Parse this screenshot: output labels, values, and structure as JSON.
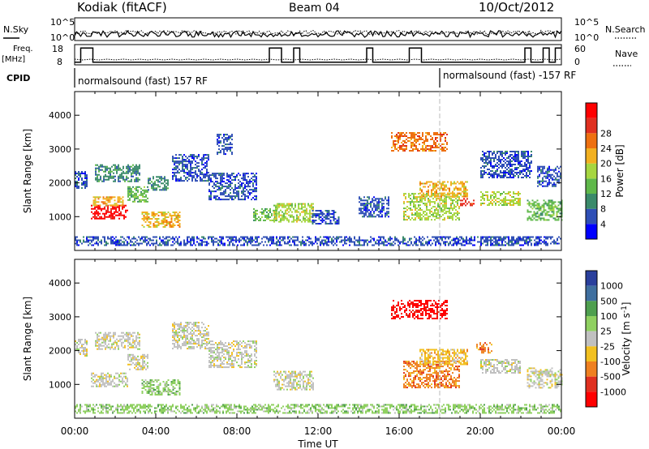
{
  "header": {
    "station": "Kodiak (fitACF)",
    "beam": "Beam 04",
    "date": "10/Oct/2012"
  },
  "summary_labels": {
    "nsky": "N.Sky",
    "nsearch": "N.Search",
    "freq": "Freq.",
    "freq_unit": "[MHz]",
    "nave": "Nave",
    "cpid": "CPID",
    "nsky_ticks": [
      "10^5",
      "10^0"
    ],
    "nsearch_ticks": [
      "10^5",
      "10^0"
    ],
    "freq_ticks": [
      "18",
      "8"
    ],
    "nave_ticks": [
      "60",
      "0"
    ]
  },
  "cpid_text": {
    "first": "normalsound (fast) 157 RF",
    "second": "normalsound (fast) -157 RF"
  },
  "colors": {
    "power": [
      "#0000ff",
      "#2f4fb6",
      "#3a8a6a",
      "#5fb84a",
      "#a6d640",
      "#f2b020",
      "#ee7010",
      "#e03020",
      "#ff0000"
    ],
    "velocity": [
      "#2a3f9c",
      "#3f6f9f",
      "#4f9f4f",
      "#8fd060",
      "#c0c0c0",
      "#f2c020",
      "#ef8020",
      "#e03020",
      "#ff0000"
    ]
  },
  "chart_data": [
    {
      "type": "heatmap",
      "title": "",
      "xlabel": "Time UT",
      "ylabel": "Slant Range [km]",
      "xlim": [
        "00:00",
        "24:00"
      ],
      "ylim": [
        0,
        4700
      ],
      "x_ticks": [
        "00:00",
        "04:00",
        "08:00",
        "12:00",
        "16:00",
        "20:00",
        "00:00"
      ],
      "y_ticks": [
        "1000",
        "2000",
        "3000",
        "4000"
      ],
      "colorbar": {
        "label": "Power [dB]",
        "ticks": [
          "4",
          "8",
          "12",
          "16",
          "20",
          "24",
          "28"
        ]
      },
      "regions": [
        {
          "t0": 0.0,
          "t1": 0.6,
          "r0": 1850,
          "r1": 2350,
          "level": 1
        },
        {
          "t0": 0.8,
          "t1": 2.6,
          "r0": 950,
          "r1": 1350,
          "level": 8
        },
        {
          "t0": 0.9,
          "t1": 2.4,
          "r0": 1350,
          "r1": 1600,
          "level": 5
        },
        {
          "t0": 1.0,
          "t1": 3.2,
          "r0": 2050,
          "r1": 2550,
          "level": 2
        },
        {
          "t0": 2.6,
          "t1": 3.6,
          "r0": 1450,
          "r1": 1900,
          "level": 3
        },
        {
          "t0": 3.3,
          "t1": 5.2,
          "r0": 700,
          "r1": 1150,
          "level": 5
        },
        {
          "t0": 3.6,
          "t1": 4.6,
          "r0": 1800,
          "r1": 2200,
          "level": 2
        },
        {
          "t0": 4.8,
          "t1": 6.6,
          "r0": 2050,
          "r1": 2850,
          "level": 1
        },
        {
          "t0": 6.6,
          "t1": 9.0,
          "r0": 1500,
          "r1": 2300,
          "level": 1
        },
        {
          "t0": 7.0,
          "t1": 7.8,
          "r0": 2850,
          "r1": 3450,
          "level": 1
        },
        {
          "t0": 8.8,
          "t1": 10.0,
          "r0": 900,
          "r1": 1250,
          "level": 3
        },
        {
          "t0": 9.8,
          "t1": 11.8,
          "r0": 850,
          "r1": 1400,
          "level": 4
        },
        {
          "t0": 11.7,
          "t1": 13.0,
          "r0": 800,
          "r1": 1200,
          "level": 1
        },
        {
          "t0": 14.0,
          "t1": 15.5,
          "r0": 1000,
          "r1": 1600,
          "level": 1
        },
        {
          "t0": 15.6,
          "t1": 18.4,
          "r0": 2950,
          "r1": 3500,
          "level": 6
        },
        {
          "t0": 16.2,
          "t1": 19.0,
          "r0": 900,
          "r1": 1700,
          "level": 4
        },
        {
          "t0": 17.0,
          "t1": 19.4,
          "r0": 1600,
          "r1": 2050,
          "level": 5
        },
        {
          "t0": 19.0,
          "t1": 19.7,
          "r0": 1350,
          "r1": 1550,
          "level": 7
        },
        {
          "t0": 20.0,
          "t1": 22.0,
          "r0": 1350,
          "r1": 1750,
          "level": 4
        },
        {
          "t0": 20.0,
          "t1": 22.5,
          "r0": 2150,
          "r1": 2950,
          "level": 1
        },
        {
          "t0": 22.3,
          "t1": 24.0,
          "r0": 900,
          "r1": 1500,
          "level": 3
        },
        {
          "t0": 22.8,
          "t1": 24.0,
          "r0": 1900,
          "r1": 2500,
          "level": 1
        },
        {
          "t0": 0.0,
          "t1": 24.0,
          "r0": 180,
          "r1": 420,
          "level": 1
        }
      ]
    },
    {
      "type": "heatmap",
      "title": "",
      "xlabel": "Time UT",
      "ylabel": "Slant Range [km]",
      "xlim": [
        "00:00",
        "24:00"
      ],
      "ylim": [
        0,
        4700
      ],
      "x_ticks": [
        "00:00",
        "04:00",
        "08:00",
        "12:00",
        "16:00",
        "20:00",
        "00:00"
      ],
      "y_ticks": [
        "1000",
        "2000",
        "3000",
        "4000"
      ],
      "colorbar": {
        "label": "Velocity [m s^-1]",
        "ticks": [
          "1000",
          "500",
          "100",
          "25",
          "-25",
          "-100",
          "-500",
          "-1000"
        ]
      },
      "regions": [
        {
          "t0": 0.0,
          "t1": 0.6,
          "r0": 1850,
          "r1": 2350,
          "level": 4
        },
        {
          "t0": 0.8,
          "t1": 2.6,
          "r0": 950,
          "r1": 1350,
          "level": 4
        },
        {
          "t0": 1.0,
          "t1": 3.2,
          "r0": 2050,
          "r1": 2550,
          "level": 4
        },
        {
          "t0": 2.6,
          "t1": 3.6,
          "r0": 1450,
          "r1": 1900,
          "level": 4
        },
        {
          "t0": 3.3,
          "t1": 5.2,
          "r0": 700,
          "r1": 1150,
          "level": 3
        },
        {
          "t0": 4.8,
          "t1": 6.6,
          "r0": 2050,
          "r1": 2850,
          "level": 4
        },
        {
          "t0": 6.6,
          "t1": 9.0,
          "r0": 1500,
          "r1": 2300,
          "level": 4
        },
        {
          "t0": 9.8,
          "t1": 11.8,
          "r0": 850,
          "r1": 1400,
          "level": 4
        },
        {
          "t0": 15.6,
          "t1": 18.4,
          "r0": 2950,
          "r1": 3500,
          "level": 8
        },
        {
          "t0": 16.2,
          "t1": 19.0,
          "r0": 900,
          "r1": 1700,
          "level": 6
        },
        {
          "t0": 17.0,
          "t1": 19.4,
          "r0": 1600,
          "r1": 2050,
          "level": 5
        },
        {
          "t0": 19.8,
          "t1": 20.6,
          "r0": 1950,
          "r1": 2250,
          "level": 6
        },
        {
          "t0": 20.0,
          "t1": 22.0,
          "r0": 1350,
          "r1": 1750,
          "level": 4
        },
        {
          "t0": 22.3,
          "t1": 24.0,
          "r0": 900,
          "r1": 1500,
          "level": 4
        },
        {
          "t0": 0.0,
          "t1": 24.0,
          "r0": 180,
          "r1": 420,
          "level": 3
        }
      ]
    }
  ]
}
